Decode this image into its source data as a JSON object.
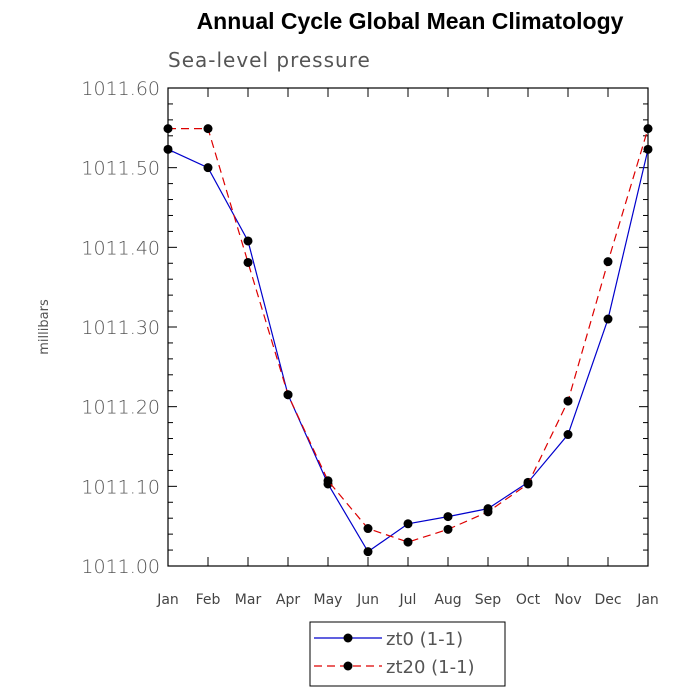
{
  "chart_data": {
    "type": "line",
    "title": "Annual Cycle Global Mean Climatology",
    "subtitle": "Sea-level pressure",
    "xlabel": "",
    "ylabel": "millibars",
    "categories": [
      "Jan",
      "Feb",
      "Mar",
      "Apr",
      "May",
      "Jun",
      "Jul",
      "Aug",
      "Sep",
      "Oct",
      "Nov",
      "Dec",
      "Jan"
    ],
    "ylim": [
      1011.0,
      1011.6
    ],
    "yticks": [
      "1011.00",
      "1011.10",
      "1011.20",
      "1011.30",
      "1011.40",
      "1011.50",
      "1011.60"
    ],
    "grid": false,
    "legend_position": "bottom",
    "series": [
      {
        "name": "zt0 (1-1)",
        "color": "#0000cc",
        "line_style": "solid",
        "values": [
          1011.523,
          1011.5,
          1011.408,
          1011.215,
          1011.103,
          1011.018,
          1011.053,
          1011.062,
          1011.072,
          1011.105,
          1011.165,
          1011.31,
          1011.523
        ]
      },
      {
        "name": "zt20 (1-1)",
        "color": "#dd0000",
        "line_style": "dashed",
        "values": [
          1011.549,
          1011.549,
          1011.381,
          1011.215,
          1011.107,
          1011.047,
          1011.03,
          1011.046,
          1011.068,
          1011.103,
          1011.207,
          1011.382,
          1011.549
        ]
      }
    ]
  }
}
